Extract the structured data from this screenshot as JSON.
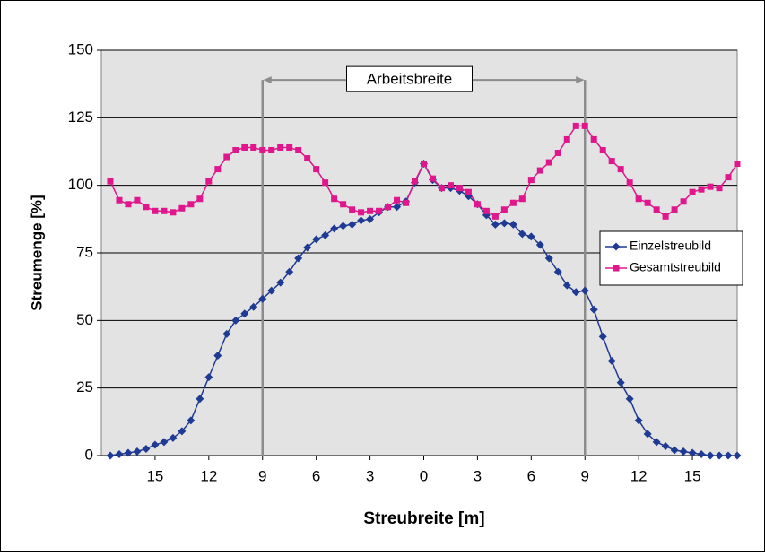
{
  "chart_data": {
    "type": "line",
    "x": [
      -17.5,
      -17,
      -16.5,
      -16,
      -15.5,
      -15,
      -14.5,
      -14,
      -13.5,
      -13,
      -12.5,
      -12,
      -11.5,
      -11,
      -10.5,
      -10,
      -9.5,
      -9,
      -8.5,
      -8,
      -7.5,
      -7,
      -6.5,
      -6,
      -5.5,
      -5,
      -4.5,
      -4,
      -3.5,
      -3,
      -2.5,
      -2,
      -1.5,
      -1,
      -0.5,
      0,
      0.5,
      1,
      1.5,
      2,
      2.5,
      3,
      3.5,
      4,
      4.5,
      5,
      5.5,
      6,
      6.5,
      7,
      7.5,
      8,
      8.5,
      9,
      9.5,
      10,
      10.5,
      11,
      11.5,
      12,
      12.5,
      13,
      13.5,
      14,
      14.5,
      15,
      15.5,
      16,
      16.5,
      17,
      17.5
    ],
    "series": [
      {
        "name": "Einzelstreubild",
        "color": "#1f3a93",
        "marker": "diamond",
        "values": [
          0,
          0.5,
          1,
          1.5,
          2.5,
          4,
          5,
          6.5,
          9,
          13,
          21,
          29,
          37,
          45,
          50,
          52.5,
          55,
          58,
          61,
          64,
          68,
          73,
          77,
          80,
          81.5,
          84,
          85,
          85.5,
          87,
          87.5,
          90,
          92,
          92,
          94,
          101,
          108,
          102,
          99,
          99,
          98,
          96,
          93,
          89,
          85.5,
          86,
          85.5,
          82,
          81,
          78,
          73,
          68,
          63,
          60.5,
          61,
          54,
          44,
          35,
          27,
          21,
          13,
          8,
          5,
          3.5,
          2,
          1.5,
          1,
          0.5,
          0,
          0,
          0,
          0
        ]
      },
      {
        "name": "Gesamtstreubild",
        "color": "#e0168c",
        "marker": "square",
        "values": [
          101.5,
          94.5,
          93,
          94.5,
          92,
          90.5,
          90.5,
          90,
          91.5,
          93,
          95,
          101.5,
          106,
          110.5,
          113,
          114,
          114,
          113,
          113,
          114,
          114,
          113,
          110,
          106,
          101,
          95,
          93,
          91,
          90,
          90.5,
          90.5,
          92,
          94.5,
          93.5,
          101.5,
          108,
          102.5,
          99,
          100,
          99,
          97.5,
          93,
          90.5,
          88.5,
          91,
          93.5,
          95,
          102,
          105.5,
          108.5,
          112,
          117,
          122,
          122,
          117,
          113,
          109,
          106,
          101,
          95,
          93.5,
          91,
          88.5,
          91,
          94,
          97.5,
          98.5,
          99.5,
          99,
          103,
          108
        ]
      }
    ],
    "xlabel": "Streubreite [m]",
    "ylabel": "Streumenge [%]",
    "xlim": [
      -18,
      17.5
    ],
    "ylim": [
      0,
      150
    ],
    "xticks": [
      {
        "value": -15,
        "label": "15"
      },
      {
        "value": -12,
        "label": "12"
      },
      {
        "value": -9,
        "label": "9"
      },
      {
        "value": -6,
        "label": "6"
      },
      {
        "value": -3,
        "label": "3"
      },
      0,
      3,
      6,
      9,
      12,
      15
    ],
    "yticks": [
      0,
      25,
      50,
      75,
      100,
      125,
      150
    ],
    "grid": true,
    "legend": "right",
    "annotation": {
      "text": "Arbeitsbreite",
      "x": [
        -9,
        9
      ],
      "y": 139
    }
  }
}
